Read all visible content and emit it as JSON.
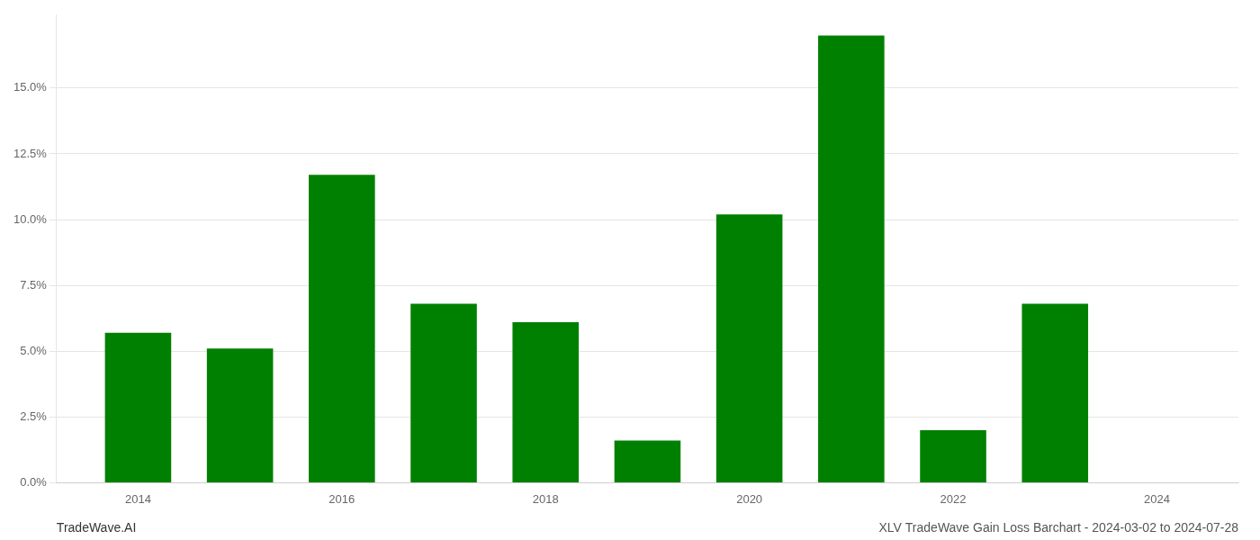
{
  "chart_data": {
    "type": "bar",
    "x": [
      2014,
      2015,
      2016,
      2017,
      2018,
      2019,
      2020,
      2021,
      2022,
      2023,
      2024
    ],
    "values": [
      0.057,
      0.051,
      0.117,
      0.068,
      0.061,
      0.016,
      0.102,
      0.17,
      0.02,
      0.068,
      0.0
    ],
    "color": "#008000",
    "xlim": [
      2013.2,
      2024.8
    ],
    "xticks": [
      2014,
      2016,
      2018,
      2020,
      2022,
      2024
    ],
    "ylim": [
      0,
      0.178
    ],
    "yticks": [
      {
        "value": 0.0,
        "label": "0.0%"
      },
      {
        "value": 0.025,
        "label": "2.5%"
      },
      {
        "value": 0.05,
        "label": "5.0%"
      },
      {
        "value": 0.075,
        "label": "7.5%"
      },
      {
        "value": 0.1,
        "label": "10.0%"
      },
      {
        "value": 0.125,
        "label": "12.5%"
      },
      {
        "value": 0.15,
        "label": "15.0%"
      }
    ],
    "grid": true,
    "annotations": [
      "TradeWave.AI",
      "XLV TradeWave Gain Loss Barchart - 2024-03-02 to 2024-07-28"
    ]
  }
}
